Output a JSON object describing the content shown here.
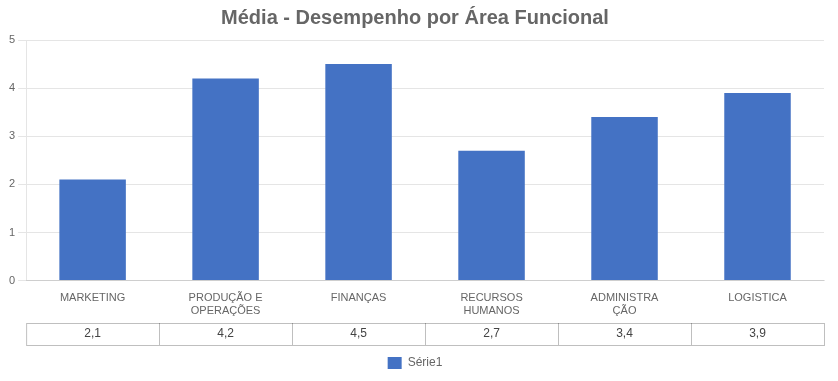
{
  "chart_data": {
    "type": "bar",
    "title": "Média - Desempenho por Área Funcional",
    "categories": [
      "MARKETING",
      "PRODUÇÃO E\nOPERAÇÕES",
      "FINANÇAS",
      "RECURSOS\nHUMANOS",
      "ADMINISTRA\nÇÃO",
      "LOGISTICA"
    ],
    "series": [
      {
        "name": "Série1",
        "color": "#4472C4",
        "values": [
          2.1,
          4.2,
          4.5,
          2.7,
          3.4,
          3.9
        ],
        "value_labels": [
          "2,1",
          "4,2",
          "4,5",
          "2,7",
          "3,4",
          "3,9"
        ]
      }
    ],
    "ylim": [
      0,
      5
    ],
    "yticks": [
      0,
      1,
      2,
      3,
      4,
      5
    ],
    "grid": true,
    "legend": "bottom",
    "data_labels": true
  }
}
